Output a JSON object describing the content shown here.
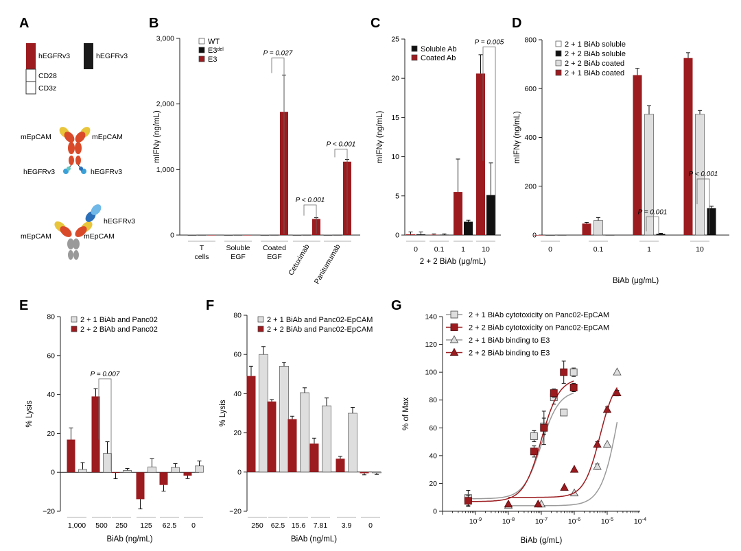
{
  "colors": {
    "red": "#9b1b1f",
    "black": "#111111",
    "light": "#dedede",
    "grey": "#9a9a9a",
    "white": "#ffffff"
  },
  "panel_letters": [
    "A",
    "B",
    "C",
    "D",
    "E",
    "F",
    "G"
  ],
  "panel_A": {
    "car1": [
      "hEGFRv3",
      "CD28",
      "CD3z"
    ],
    "car2": "hEGFRv3",
    "biab1": {
      "top_left": "mEpCAM",
      "top_right": "mEpCAM",
      "bottom_left": "hEGFRv3",
      "bottom_right": "hEGFRv3"
    },
    "biab2": {
      "right_top": "hEGFRv3",
      "left": "mEpCAM",
      "right": "mEpCAM"
    }
  },
  "chart_data": [
    {
      "id": "B",
      "type": "bar",
      "ylabel": "mIFNγ (ng/mL)",
      "ylim": [
        0,
        3000
      ],
      "yticks": [
        0,
        1000,
        2000,
        3000
      ],
      "ytick_labels": [
        "0",
        "1,000",
        "2,000",
        "3,000"
      ],
      "categories": [
        "T cells",
        "Soluble EGF",
        "Coated EGF",
        "Cetuximab",
        "Panitumumab"
      ],
      "series": [
        {
          "name": "WT",
          "color": "white",
          "values": [
            0,
            0,
            0,
            0,
            0
          ],
          "err": [
            0,
            0,
            0,
            0,
            0
          ]
        },
        {
          "name": "E3del",
          "color": "black",
          "values": [
            0,
            0,
            0,
            0,
            0
          ],
          "err": [
            0,
            0,
            0,
            0,
            0
          ]
        },
        {
          "name": "E3",
          "color": "red",
          "values": [
            0,
            0,
            1880,
            245,
            1120
          ],
          "err": [
            0,
            0,
            560,
            20,
            35
          ]
        }
      ],
      "legend": [
        "WT",
        "E3",
        "E3"
      ],
      "legend_sup": [
        "",
        "del",
        ""
      ],
      "pvalues": [
        {
          "label": "P = 0.027",
          "category": 2,
          "from": 2,
          "to": 0,
          "height": 2700
        },
        {
          "label": "P < 0.001",
          "category": 3,
          "from": 2,
          "to": 0,
          "height": 460
        },
        {
          "label": "P < 0.001",
          "category": 4,
          "from": 2,
          "to": 0,
          "height": 1310
        }
      ]
    },
    {
      "id": "C",
      "type": "bar",
      "ylabel": "mIFNγ (ng/mL)",
      "xlabel": "2 + 2 BiAb (μg/mL)",
      "ylim": [
        0,
        25
      ],
      "yticks": [
        0,
        5,
        10,
        15,
        20,
        25
      ],
      "categories": [
        "0",
        "0.1",
        "1",
        "10"
      ],
      "series": [
        {
          "name": "Soluble Ab",
          "color": "black",
          "values": [
            0.1,
            0.05,
            1.7,
            5.1
          ],
          "err": [
            0.3,
            0.1,
            0.2,
            4.1
          ]
        },
        {
          "name": "Coated Ab",
          "color": "red",
          "values": [
            0.1,
            0.05,
            5.5,
            20.6
          ],
          "err": [
            0.3,
            0.1,
            4.2,
            2.4
          ]
        }
      ],
      "order": [
        1,
        0
      ],
      "pvalues": [
        {
          "label": "P = 0.005",
          "category": 3,
          "from": 0,
          "to": 1,
          "height": 24.0
        }
      ]
    },
    {
      "id": "D",
      "type": "bar",
      "ylabel": "mIFNγ (ng/mL)",
      "xlabel": "BiAb (μg/mL)",
      "ylim": [
        0,
        800
      ],
      "yticks": [
        0,
        200,
        400,
        600,
        800
      ],
      "categories": [
        "0",
        "0.1",
        "1",
        "10"
      ],
      "series": [
        {
          "name": "2 + 1 BiAb soluble",
          "color": "white",
          "values": [
            0,
            0,
            0,
            0
          ],
          "err": [
            0,
            0,
            0,
            0
          ]
        },
        {
          "name": "2 + 2 BiAb soluble",
          "color": "black",
          "values": [
            0,
            0,
            5,
            110
          ],
          "err": [
            0,
            0,
            2,
            8
          ]
        },
        {
          "name": "2 + 2 BiAb coated",
          "color": "light",
          "values": [
            0,
            60,
            495,
            495
          ],
          "err": [
            0,
            12,
            35,
            15
          ]
        },
        {
          "name": "2 + 1 BiAb coated",
          "color": "red",
          "values": [
            0,
            47,
            655,
            725
          ],
          "err": [
            0,
            5,
            28,
            22
          ]
        }
      ],
      "order": [
        3,
        2,
        1
      ],
      "pvalues": [
        {
          "label": "P = 0.001",
          "category": 2,
          "from": 1,
          "to": 2,
          "height": 75
        },
        {
          "label": "P < 0.001",
          "category": 3,
          "from": 1,
          "to": 2,
          "height": 230
        }
      ]
    },
    {
      "id": "E",
      "type": "bar",
      "ylabel": "% Lysis",
      "xlabel": "BiAb (ng/mL)",
      "ylim": [
        -20,
        80
      ],
      "yticks": [
        -20,
        0,
        20,
        40,
        60,
        80
      ],
      "ytick_labels": [
        "−20",
        "0",
        "20",
        "40",
        "60",
        "80"
      ],
      "categories": [
        "1,000",
        "500",
        "250",
        "125",
        "62.5",
        "0"
      ],
      "series": [
        {
          "name": "2 + 1 BiAb and Panc02",
          "color": "light",
          "values": [
            1.5,
            9.7,
            1.0,
            2.8,
            2.5,
            3.3
          ],
          "err": [
            3.5,
            6.0,
            1.0,
            4.2,
            2.0,
            2.5
          ]
        },
        {
          "name": "2 + 2 BiAb and Panc02",
          "color": "red",
          "values": [
            16.8,
            39.0,
            -0.3,
            -13.8,
            -6.5,
            -1.7
          ],
          "err": [
            6.0,
            4.0,
            3.0,
            5.0,
            3.2,
            1.5
          ]
        }
      ],
      "order": [
        1,
        0
      ],
      "pvalues": [
        {
          "label": "P = 0.007",
          "category": 1,
          "from": 0,
          "to": 1,
          "height": 48
        }
      ]
    },
    {
      "id": "F",
      "type": "bar",
      "ylabel": "% Lysis",
      "xlabel": "BiAb (ng/mL)",
      "ylim": [
        -20,
        80
      ],
      "yticks": [
        -20,
        0,
        20,
        40,
        60,
        80
      ],
      "ytick_labels": [
        "−20",
        "0",
        "20",
        "40",
        "60",
        "80"
      ],
      "categories": [
        "250",
        "62.5",
        "15.6",
        "7.81",
        "3.9",
        "0"
      ],
      "series": [
        {
          "name": "2 + 1 BiAb and Panc02-EpCAM",
          "color": "light",
          "values": [
            60.0,
            54.0,
            40.5,
            33.8,
            30.0,
            -0.4
          ],
          "err": [
            4.0,
            2.0,
            2.5,
            4.0,
            3.0,
            0.8
          ]
        },
        {
          "name": "2 + 2 BiAb and Panc02-EpCAM",
          "color": "red",
          "values": [
            49.0,
            36.0,
            27.0,
            14.5,
            6.8,
            -0.6
          ],
          "err": [
            5.0,
            1.0,
            1.5,
            2.8,
            1.2,
            0.8
          ]
        }
      ],
      "order": [
        1,
        0
      ]
    },
    {
      "id": "G",
      "type": "scatter",
      "ylabel": "% of Max",
      "xlabel": "BiAb (g/mL)",
      "xscale": "log",
      "xlim": [
        1e-10,
        0.0001
      ],
      "ylim": [
        0,
        140
      ],
      "yticks": [
        0,
        20,
        40,
        60,
        80,
        100,
        120,
        140
      ],
      "xticks": [
        1e-09,
        1e-08,
        1e-07,
        1e-06,
        1e-05,
        0.0001
      ],
      "xtick_base": "10",
      "xtick_exps": [
        "-9",
        "-8",
        "-7",
        "-6",
        "-5",
        "-4"
      ],
      "series": [
        {
          "name": "2 + 1 BiAb cytotoxicity  on Panc02-EpCAM",
          "marker": "square",
          "color": "light",
          "line": "grey",
          "x": [
            6e-10,
            6e-08,
            1.2e-07,
            2.4e-07,
            4.8e-07,
            9.6e-07
          ],
          "y": [
            9.5,
            54,
            61,
            82,
            71,
            100
          ],
          "err": [
            5.5,
            4,
            6,
            5,
            0,
            3
          ],
          "fit": {
            "bottom": 9,
            "top": 87,
            "ec50": 1e-07,
            "hill": 1.6
          }
        },
        {
          "name": "2 + 2 BiAb cytotoxicity  on Panc02-EpCAM",
          "marker": "square",
          "color": "red",
          "line": "red",
          "x": [
            6e-10,
            6e-08,
            1.2e-07,
            2.4e-07,
            4.8e-07,
            9.6e-07
          ],
          "y": [
            7.5,
            43,
            60,
            85,
            100,
            89
          ],
          "err": [
            4,
            4,
            12,
            3,
            8,
            3
          ],
          "fit": {
            "bottom": 7,
            "top": 96,
            "ec50": 1e-07,
            "hill": 1.6
          }
        },
        {
          "name": "2 + 1 BiAb binding to E3",
          "marker": "triangle",
          "color": "light",
          "line": "grey",
          "x": [
            1e-08,
            1e-07,
            1e-06,
            5e-06,
            1e-05,
            2e-05
          ],
          "y": [
            4,
            5,
            13,
            32,
            48,
            100
          ],
          "err": [
            0,
            0,
            0,
            2,
            0,
            0
          ],
          "fit": {
            "bottom": 4,
            "top": 150,
            "ec50": 2.5e-05,
            "hill": 1.6
          }
        },
        {
          "name": "2 + 2 BiAb binding to E3",
          "marker": "triangle",
          "color": "red",
          "line": "red",
          "x": [
            1e-08,
            8e-08,
            5e-07,
            1e-06,
            5e-06,
            1e-05,
            2e-05
          ],
          "y": [
            5,
            5,
            17,
            30,
            48,
            73,
            85
          ],
          "err": [
            0,
            0,
            0,
            0,
            2,
            2,
            2
          ],
          "fit": {
            "bottom": 10,
            "top": 98,
            "ec50": 6e-06,
            "hill": 1.8
          }
        }
      ]
    }
  ]
}
